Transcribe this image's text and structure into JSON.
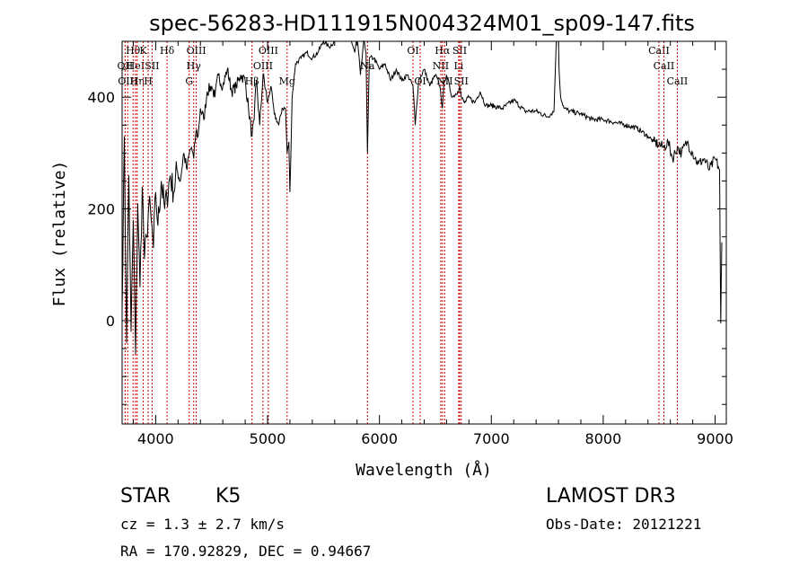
{
  "chart_data": {
    "type": "line",
    "title": "spec-56283-HD111915N004324M01_sp09-147.fits",
    "xlabel": "Wavelength (Å)",
    "ylabel": "Flux (relative)",
    "xlim": [
      3700,
      9100
    ],
    "ylim": [
      -185,
      500
    ],
    "xticks": [
      4000,
      5000,
      6000,
      7000,
      8000,
      9000
    ],
    "yticks": [
      0,
      200,
      400
    ],
    "series": [
      {
        "name": "flux",
        "x": [
          3700,
          3720,
          3740,
          3760,
          3780,
          3800,
          3820,
          3840,
          3860,
          3880,
          3900,
          3920,
          3940,
          3960,
          3980,
          4000,
          4020,
          4050,
          4080,
          4100,
          4130,
          4160,
          4190,
          4220,
          4250,
          4280,
          4300,
          4320,
          4340,
          4360,
          4380,
          4400,
          4430,
          4460,
          4500,
          4530,
          4560,
          4600,
          4640,
          4680,
          4720,
          4760,
          4800,
          4830,
          4861,
          4880,
          4900,
          4930,
          4960,
          5000,
          5030,
          5060,
          5100,
          5130,
          5160,
          5175,
          5190,
          5200,
          5220,
          5250,
          5300,
          5350,
          5400,
          5450,
          5500,
          5550,
          5600,
          5650,
          5700,
          5750,
          5780,
          5800,
          5830,
          5860,
          5880,
          5893,
          5910,
          5950,
          6000,
          6050,
          6100,
          6150,
          6200,
          6250,
          6300,
          6320,
          6350,
          6400,
          6450,
          6500,
          6540,
          6563,
          6580,
          6600,
          6650,
          6700,
          6717,
          6731,
          6760,
          6800,
          6850,
          6900,
          6950,
          7000,
          7100,
          7200,
          7300,
          7400,
          7500,
          7560,
          7580,
          7600,
          7605,
          7620,
          7650,
          7700,
          7800,
          7900,
          8000,
          8100,
          8200,
          8300,
          8400,
          8450,
          8498,
          8542,
          8580,
          8620,
          8662,
          8700,
          8750,
          8800,
          8850,
          8900,
          8950,
          9000,
          9040,
          9050,
          9060
        ],
        "values": [
          20,
          330,
          -40,
          260,
          -20,
          180,
          -60,
          210,
          60,
          240,
          110,
          150,
          210,
          180,
          130,
          230,
          170,
          250,
          200,
          220,
          260,
          230,
          270,
          250,
          300,
          270,
          300,
          310,
          290,
          340,
          330,
          380,
          360,
          410,
          420,
          400,
          440,
          420,
          450,
          410,
          420,
          440,
          430,
          380,
          330,
          360,
          430,
          350,
          440,
          390,
          420,
          370,
          350,
          380,
          380,
          300,
          320,
          230,
          400,
          460,
          470,
          480,
          470,
          480,
          500,
          490,
          500,
          510,
          520,
          500,
          480,
          510,
          440,
          500,
          480,
          300,
          470,
          470,
          450,
          460,
          430,
          450,
          430,
          440,
          420,
          350,
          430,
          450,
          420,
          440,
          420,
          380,
          430,
          440,
          400,
          410,
          420,
          400,
          390,
          400,
          390,
          410,
          385,
          385,
          380,
          395,
          375,
          375,
          365,
          375,
          500,
          535,
          450,
          400,
          380,
          375,
          370,
          360,
          360,
          355,
          350,
          345,
          330,
          320,
          315,
          310,
          320,
          290,
          310,
          300,
          320,
          300,
          280,
          290,
          270,
          290,
          270,
          -5,
          140
        ]
      }
    ],
    "lines": [
      {
        "wl": 3727,
        "label": "OII",
        "row": 1
      },
      {
        "wl": 3750,
        "label": "OIII",
        "row": 2
      },
      {
        "wl": 3798,
        "label": "Hθ",
        "row": 0
      },
      {
        "wl": 3820,
        "label": "HeI",
        "row": 1
      },
      {
        "wl": 3835,
        "label": "Hη",
        "row": 2
      },
      {
        "wl": 3889,
        "label": "K",
        "row": 0
      },
      {
        "wl": 3933,
        "label": "H",
        "row": 2
      },
      {
        "wl": 3968,
        "label": "SII",
        "row": 1
      },
      {
        "wl": 4102,
        "label": "Hδ",
        "row": 0
      },
      {
        "wl": 4300,
        "label": "G",
        "row": 2
      },
      {
        "wl": 4340,
        "label": "Hγ",
        "row": 1
      },
      {
        "wl": 4363,
        "label": "OIII",
        "row": 0
      },
      {
        "wl": 4861,
        "label": "Hβ",
        "row": 2
      },
      {
        "wl": 4959,
        "label": "OIII",
        "row": 1
      },
      {
        "wl": 5007,
        "label": "OIII",
        "row": 0
      },
      {
        "wl": 5175,
        "label": "Mg",
        "row": 2
      },
      {
        "wl": 5893,
        "label": "Na",
        "row": 1
      },
      {
        "wl": 6300,
        "label": "OI",
        "row": 0
      },
      {
        "wl": 6364,
        "label": "OI",
        "row": 2
      },
      {
        "wl": 6548,
        "label": "NII",
        "row": 1
      },
      {
        "wl": 6563,
        "label": "Hα",
        "row": 0
      },
      {
        "wl": 6583,
        "label": "NII",
        "row": 2
      },
      {
        "wl": 6708,
        "label": "Li",
        "row": 1
      },
      {
        "wl": 6717,
        "label": "SII",
        "row": 0
      },
      {
        "wl": 6731,
        "label": "SII",
        "row": 2
      },
      {
        "wl": 8498,
        "label": "CaII",
        "row": 0
      },
      {
        "wl": 8542,
        "label": "CaII",
        "row": 1
      },
      {
        "wl": 8662,
        "label": "CaII",
        "row": 2
      }
    ],
    "line_color": "#cc0000",
    "axis_color": "#000000"
  },
  "info": {
    "object_class": "STAR",
    "subclass": "K5",
    "survey": "LAMOST DR3",
    "cz_text": "cz = 1.3 ± 2.7 km/s",
    "obs_date": "Obs-Date: 20121221",
    "radec": "RA = 170.92829, DEC =    0.94667"
  }
}
